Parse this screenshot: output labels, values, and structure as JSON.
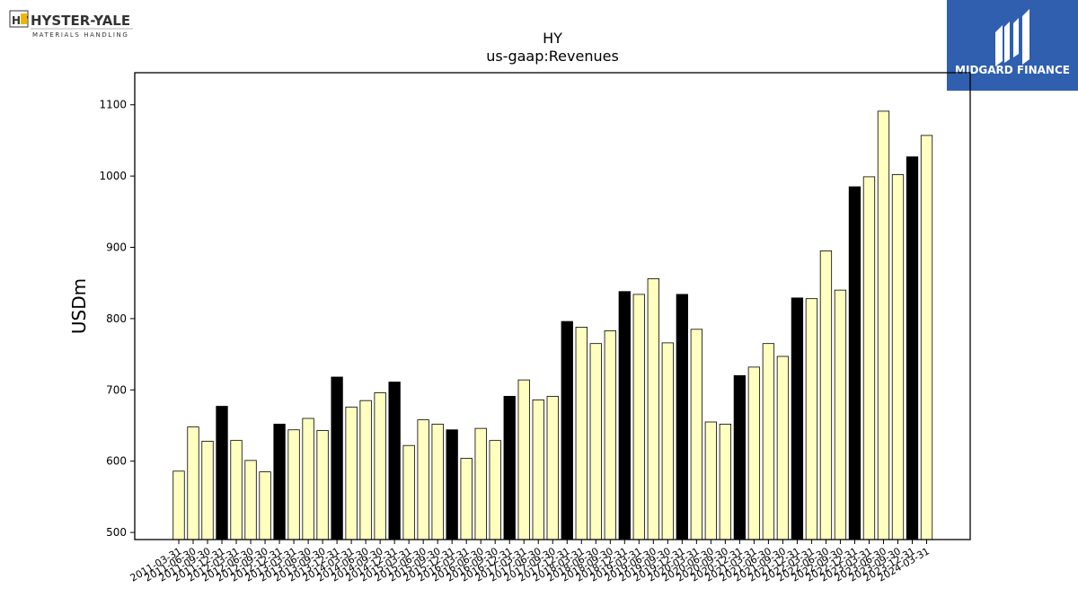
{
  "brand": {
    "left_logo_name": "HYSTER-YALE",
    "left_logo_tagline": "MATERIALS HANDLING",
    "left_logo_mark": "HY",
    "right_logo_name": "MIDGARD FINANCE",
    "right_logo_bg": "#2f5fae"
  },
  "chart_data": {
    "type": "bar",
    "title": "HY",
    "subtitle": "us-gaap:Revenues",
    "ylabel": "USDm",
    "xlabel": "",
    "ylim": [
      490,
      1145
    ],
    "yticks": [
      500,
      600,
      700,
      800,
      900,
      1000,
      1100
    ],
    "grid": false,
    "colors": {
      "quarter": "#ffffc0",
      "annual": "#000000",
      "edge": "#000000"
    },
    "categories": [
      "2011-03-31",
      "2011-06-30",
      "2011-09-30",
      "2011-12-31",
      "2012-03-31",
      "2012-06-30",
      "2012-09-30",
      "2012-12-31",
      "2013-03-31",
      "2013-06-30",
      "2013-09-30",
      "2013-12-31",
      "2014-03-31",
      "2014-06-30",
      "2014-09-30",
      "2014-12-31",
      "2015-03-31",
      "2015-06-30",
      "2015-09-30",
      "2015-12-31",
      "2016-03-31",
      "2016-06-30",
      "2016-09-30",
      "2016-12-31",
      "2017-03-31",
      "2017-06-30",
      "2017-09-30",
      "2017-12-31",
      "2018-03-31",
      "2018-06-30",
      "2018-09-30",
      "2018-12-31",
      "2019-03-31",
      "2019-06-30",
      "2019-09-30",
      "2019-12-31",
      "2020-03-31",
      "2020-06-30",
      "2020-09-30",
      "2020-12-31",
      "2021-03-31",
      "2021-06-30",
      "2021-09-30",
      "2021-12-31",
      "2022-03-31",
      "2022-06-30",
      "2022-09-30",
      "2022-12-31",
      "2023-03-31",
      "2023-06-30",
      "2023-09-30",
      "2023-12-31",
      "2024-03-31"
    ],
    "values": [
      586,
      648,
      628,
      677,
      629,
      601,
      585,
      652,
      644,
      660,
      643,
      718,
      676,
      685,
      696,
      711,
      622,
      658,
      652,
      644,
      604,
      646,
      629,
      691,
      714,
      686,
      691,
      796,
      788,
      765,
      783,
      838,
      834,
      856,
      766,
      834,
      785,
      655,
      652,
      720,
      732,
      765,
      747,
      829,
      828,
      895,
      840,
      985,
      999,
      1091,
      1002,
      1027,
      1057
    ],
    "annual_flags": [
      0,
      0,
      0,
      1,
      0,
      0,
      0,
      1,
      0,
      0,
      0,
      1,
      0,
      0,
      0,
      1,
      0,
      0,
      0,
      1,
      0,
      0,
      0,
      1,
      0,
      0,
      0,
      1,
      0,
      0,
      0,
      1,
      0,
      0,
      0,
      1,
      0,
      0,
      0,
      1,
      0,
      0,
      0,
      1,
      0,
      0,
      0,
      1,
      0,
      0,
      0,
      1,
      0
    ]
  }
}
